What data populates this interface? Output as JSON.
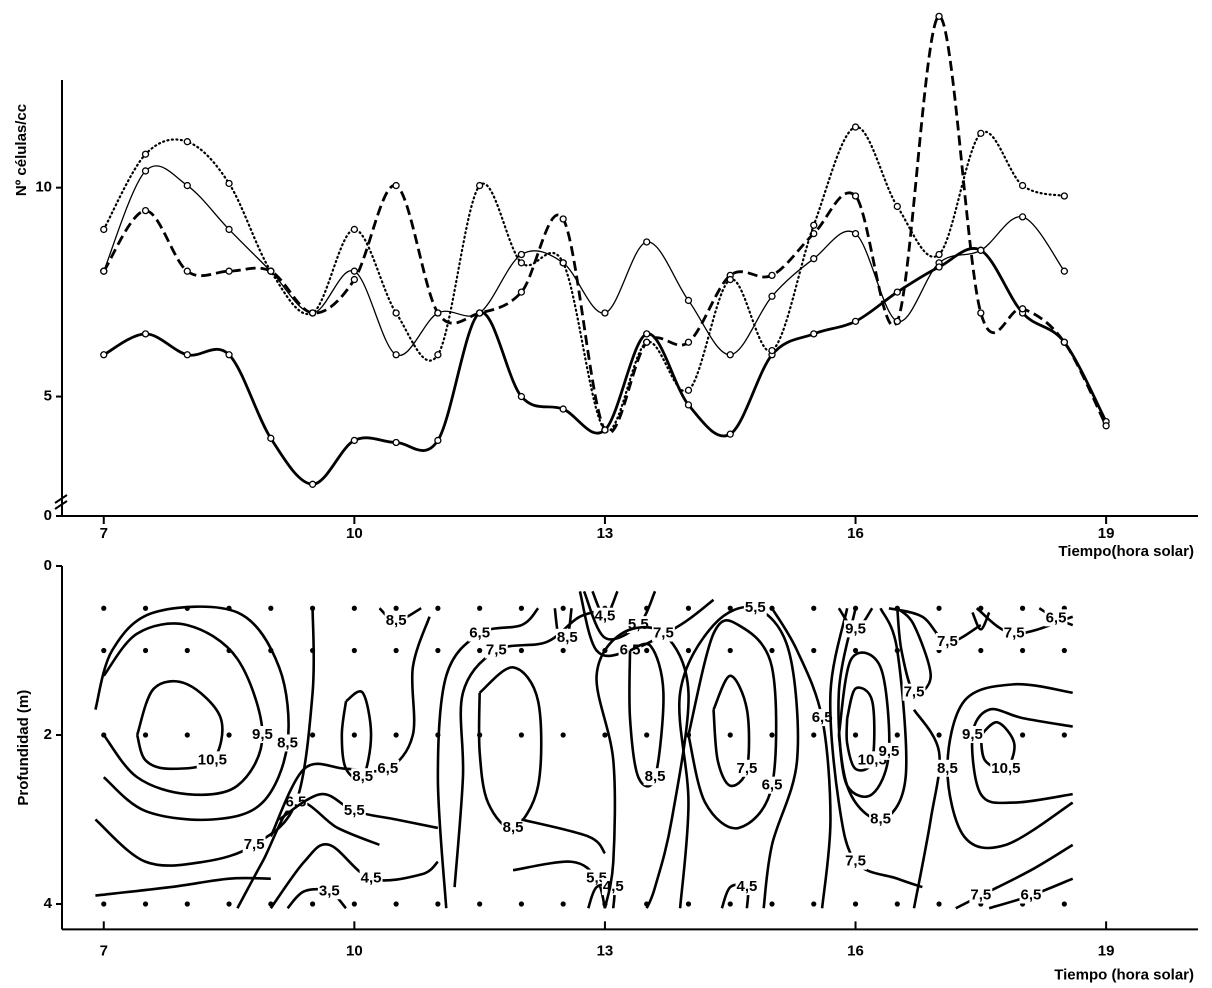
{
  "chart_data": [
    {
      "type": "line",
      "y_label": "Nº células/cc",
      "x_label": "Tiempo(hora solar)",
      "x": [
        7,
        7.5,
        8,
        8.5,
        9,
        9.5,
        10,
        10.5,
        11,
        11.5,
        12,
        12.5,
        13,
        13.5,
        14,
        14.5,
        15,
        15.5,
        16,
        16.5,
        17,
        17.5,
        18,
        18.5,
        19
      ],
      "xlim": [
        6.5,
        20.1
      ],
      "xticks": [
        7,
        10,
        13,
        16,
        19
      ],
      "ylim": [
        0,
        14.3
      ],
      "yticks": [
        0,
        5,
        10
      ],
      "broken_axis": true,
      "series": [
        {
          "color": "#000000",
          "style": "solid-thin",
          "values": [
            8.0,
            10.4,
            10.05,
            9.0,
            8.0,
            7.0,
            8.0,
            6.0,
            7.0,
            7.0,
            8.4,
            8.2,
            7.0,
            8.7,
            7.3,
            6.0,
            7.4,
            8.3,
            8.9,
            6.8,
            8.2,
            8.5,
            9.3,
            8.0,
            null
          ]
        },
        {
          "color": "#000000",
          "style": "solid-thick",
          "values": [
            6.0,
            6.5,
            6.0,
            6.0,
            4.0,
            2.9,
            3.95,
            3.9,
            3.95,
            7.0,
            5.0,
            4.7,
            4.2,
            6.5,
            4.8,
            4.1,
            6.0,
            6.5,
            6.8,
            7.5,
            8.1,
            8.5,
            7.0,
            6.3,
            4.4
          ]
        },
        {
          "color": "#000000",
          "style": "dashed",
          "values": [
            8.0,
            9.45,
            8.0,
            8.0,
            8.0,
            7.0,
            7.8,
            10.05,
            7.0,
            7.0,
            7.5,
            9.25,
            4.2,
            6.3,
            6.3,
            7.9,
            7.9,
            8.9,
            9.8,
            6.8,
            14.1,
            7.0,
            7.1,
            6.3,
            4.3
          ]
        },
        {
          "color": "#000000",
          "style": "dotted",
          "values": [
            9.0,
            10.8,
            11.1,
            10.1,
            8.0,
            7.0,
            9.0,
            7.0,
            6.0,
            10.05,
            8.2,
            8.2,
            4.2,
            6.3,
            5.15,
            7.8,
            6.1,
            9.1,
            11.45,
            9.55,
            8.4,
            11.3,
            10.05,
            9.8,
            null
          ]
        }
      ]
    },
    {
      "type": "contour",
      "y_label": "Profundidad (m)",
      "x_label": "Tiempo (hora solar)",
      "xlim": [
        6.5,
        20.1
      ],
      "xticks": [
        7,
        10,
        13,
        16,
        19
      ],
      "ylim": [
        0,
        4.3
      ],
      "yticks": [
        0,
        2,
        4
      ],
      "y_inverted": true,
      "sample_times": [
        7,
        7.5,
        8,
        8.5,
        9,
        9.5,
        10,
        10.5,
        11,
        11.5,
        12,
        12.5,
        13,
        13.5,
        14,
        14.5,
        15,
        15.5,
        16,
        16.5,
        17,
        17.5,
        18,
        18.5
      ],
      "sample_depths": [
        0.5,
        1,
        2,
        4
      ],
      "contours": [
        {
          "label": "10,5",
          "x": [
            7.4,
            7.6,
            8.0,
            8.4,
            8.3,
            7.8,
            7.5,
            7.4
          ],
          "depth": [
            2.0,
            1.45,
            1.4,
            1.8,
            2.3,
            2.4,
            2.3,
            2.0
          ]
        },
        {
          "label": "9,5",
          "x": [
            7.0,
            7.4,
            8.0,
            8.6,
            8.9,
            8.6,
            8.0,
            7.4,
            7.0
          ],
          "depth": [
            1.3,
            0.8,
            0.7,
            1.1,
            2.0,
            2.6,
            2.7,
            2.5,
            2.0
          ]
        },
        {
          "label": "8,5",
          "x": [
            6.9,
            7.1,
            7.6,
            8.6,
            9.1,
            9.2,
            8.9,
            8.3,
            7.5,
            7.0
          ],
          "depth": [
            1.7,
            1.0,
            0.55,
            0.55,
            1.2,
            2.1,
            2.8,
            3.0,
            2.9,
            2.5
          ]
        },
        {
          "label": "7,5",
          "x": [
            6.9,
            7.5,
            8.2,
            8.8,
            9.3,
            9.5,
            9.5
          ],
          "depth": [
            3.0,
            3.5,
            3.5,
            3.3,
            2.8,
            1.5,
            0.5
          ]
        },
        {
          "label": "6,5",
          "x": [
            8.6,
            8.9,
            9.3,
            9.8,
            10.3
          ],
          "depth": [
            4.05,
            3.5,
            2.8,
            3.1,
            3.3
          ]
        },
        {
          "x": [
            6.9,
            7.8,
            8.5,
            9.0
          ],
          "depth": [
            3.9,
            3.8,
            3.7,
            3.7
          ]
        },
        {
          "label": "3,5",
          "x": [
            9.2,
            9.4,
            9.7,
            9.9
          ],
          "depth": [
            4.05,
            3.85,
            3.85,
            4.05
          ]
        },
        {
          "label": "4,5",
          "x": [
            9.0,
            9.4,
            9.7,
            10.2,
            10.8,
            11.0
          ],
          "depth": [
            4.05,
            3.5,
            3.3,
            3.7,
            3.65,
            3.5
          ]
        },
        {
          "label": "5,5",
          "x": [
            9.1,
            9.6,
            10.0,
            10.5,
            11.0
          ],
          "depth": [
            3.0,
            2.7,
            2.9,
            3.0,
            3.1
          ]
        },
        {
          "label": "6,5",
          "x": [
            9.0,
            9.4,
            9.9,
            10.4,
            10.7,
            10.7,
            10.9
          ],
          "depth": [
            3.2,
            2.4,
            2.4,
            2.4,
            2.0,
            1.2,
            0.6
          ]
        },
        {
          "label": "8,5",
          "x": [
            9.9,
            10.1,
            10.2,
            10.1,
            9.9,
            9.85,
            9.9
          ],
          "depth": [
            1.6,
            1.5,
            2.0,
            2.5,
            2.4,
            2.0,
            1.6
          ]
        },
        {
          "label": "8,5",
          "x": [
            10.3,
            10.5,
            10.8
          ],
          "depth": [
            0.5,
            0.65,
            0.5
          ]
        },
        {
          "label": "8,5",
          "x": [
            11.5,
            11.9,
            12.2,
            12.2,
            11.9,
            11.6,
            11.5,
            11.5
          ],
          "depth": [
            1.5,
            1.2,
            1.6,
            2.6,
            3.1,
            2.8,
            2.2,
            1.5
          ]
        },
        {
          "label": "7,5",
          "x": [
            11.2,
            11.3,
            11.3,
            11.7,
            12.3,
            12.7,
            13.1
          ],
          "depth": [
            3.8,
            2.5,
            1.5,
            1.0,
            0.9,
            0.6,
            0.5
          ]
        },
        {
          "label": "6,5",
          "x": [
            11.1,
            11.0,
            11.1,
            11.5,
            12.0,
            12.2
          ],
          "depth": [
            4.05,
            2.5,
            1.3,
            0.8,
            0.7,
            0.5
          ]
        },
        {
          "x": [
            12.0,
            12.8,
            13.0
          ],
          "depth": [
            3.0,
            3.2,
            3.4
          ]
        },
        {
          "label": "5,5",
          "x": [
            11.9,
            12.6,
            12.9,
            13.0
          ],
          "depth": [
            3.6,
            3.5,
            3.7,
            4.05
          ]
        },
        {
          "label": "4,5",
          "x": [
            12.8,
            12.9,
            13.1,
            13.1
          ],
          "depth": [
            4.05,
            3.8,
            3.8,
            4.05
          ]
        },
        {
          "label": "8,5",
          "x": [
            12.4,
            12.45,
            12.55,
            12.6
          ],
          "depth": [
            0.5,
            0.85,
            0.85,
            0.5
          ]
        },
        {
          "label": "4,5",
          "x": [
            12.85,
            13.0,
            13.15
          ],
          "depth": [
            0.3,
            0.6,
            0.3
          ]
        },
        {
          "label": "5,5",
          "x": [
            12.75,
            13.0,
            13.4,
            13.6
          ],
          "depth": [
            0.3,
            0.85,
            0.7,
            0.3
          ]
        },
        {
          "label": "6,5",
          "x": [
            12.7,
            12.9,
            13.3,
            13.9,
            14.3
          ],
          "depth": [
            0.3,
            1.0,
            1.0,
            0.7,
            0.4
          ]
        },
        {
          "label": "8,5",
          "x": [
            13.3,
            13.55,
            13.7,
            13.6,
            13.4,
            13.3,
            13.3
          ],
          "depth": [
            1.0,
            0.95,
            1.5,
            2.5,
            2.5,
            1.8,
            1.0
          ]
        },
        {
          "label": "7,5",
          "x": [
            13.0,
            13.1,
            13.1,
            12.9,
            13.2,
            13.7,
            14.0,
            13.8,
            13.6,
            13.5
          ],
          "depth": [
            4.05,
            3.5,
            2.3,
            1.3,
            0.8,
            0.8,
            1.5,
            3.0,
            3.8,
            4.05
          ]
        },
        {
          "label": "7,5",
          "x": [
            14.3,
            14.5,
            14.7,
            14.7,
            14.5,
            14.35,
            14.3
          ],
          "depth": [
            1.7,
            1.3,
            1.7,
            2.4,
            2.6,
            2.3,
            1.7
          ]
        },
        {
          "label": "6,5",
          "x": [
            14.0,
            14.3,
            14.6,
            15.0,
            15.0,
            14.6,
            14.2,
            14.0
          ],
          "depth": [
            2.0,
            0.8,
            0.7,
            1.2,
            2.6,
            3.1,
            2.8,
            2.0
          ]
        },
        {
          "label": "5,5",
          "x": [
            13.9,
            14.0,
            13.9,
            14.3,
            14.8,
            15.2,
            15.3,
            15.0,
            14.9
          ],
          "depth": [
            4.05,
            2.8,
            1.5,
            0.7,
            0.5,
            1.0,
            2.3,
            3.3,
            4.05
          ]
        },
        {
          "label": "4,5",
          "x": [
            14.4,
            14.5,
            14.7,
            14.7
          ],
          "depth": [
            4.05,
            3.8,
            3.8,
            4.05
          ]
        },
        {
          "label": "6,5",
          "x": [
            15.6,
            15.7,
            15.6,
            15.3,
            15.0
          ],
          "depth": [
            4.05,
            3.0,
            1.8,
            1.0,
            0.5
          ]
        },
        {
          "label": "7,5",
          "x": [
            15.9,
            15.7,
            15.8,
            16.0,
            16.5,
            16.8
          ],
          "depth": [
            0.5,
            1.5,
            2.8,
            3.5,
            3.7,
            3.8
          ]
        },
        {
          "label": "10,5",
          "x": [
            15.9,
            16.0,
            16.2,
            16.2,
            16.0,
            15.9,
            15.9
          ],
          "depth": [
            1.8,
            1.45,
            1.6,
            2.3,
            2.4,
            2.1,
            1.8
          ]
        },
        {
          "label": "9,5",
          "x": [
            15.8,
            15.95,
            16.3,
            16.4,
            16.2,
            15.9,
            15.8
          ],
          "depth": [
            2.0,
            1.1,
            1.2,
            2.2,
            2.7,
            2.6,
            2.0
          ]
        },
        {
          "label": "8,5",
          "x": [
            16.0,
            15.8,
            15.9,
            16.3,
            16.6,
            16.5,
            16.3
          ],
          "depth": [
            0.5,
            1.5,
            2.6,
            3.0,
            2.5,
            1.0,
            0.5
          ]
        },
        {
          "label": "9,5",
          "x": [
            15.8,
            16.0,
            16.2
          ],
          "depth": [
            0.5,
            0.75,
            0.5
          ]
        },
        {
          "label": "7,5",
          "x": [
            16.5,
            16.7,
            16.9,
            16.7,
            16.55,
            16.5
          ],
          "depth": [
            0.5,
            0.7,
            1.3,
            1.5,
            1.0,
            0.5
          ]
        },
        {
          "label": "7,5",
          "x": [
            16.4,
            16.8,
            17.1,
            17.5
          ],
          "depth": [
            0.5,
            0.6,
            0.9,
            0.7
          ]
        },
        {
          "x": [
            16.7,
            16.9,
            17.0,
            16.7
          ],
          "depth": [
            4.05,
            3.0,
            2.2,
            1.7
          ]
        },
        {
          "label": "10,5",
          "x": [
            17.5,
            17.7,
            17.9,
            17.8,
            17.55,
            17.5
          ],
          "depth": [
            2.0,
            1.85,
            2.1,
            2.4,
            2.3,
            2.0
          ]
        },
        {
          "label": "9,5",
          "x": [
            18.6,
            18.0,
            17.6,
            17.4,
            17.5,
            17.9,
            18.6
          ],
          "depth": [
            1.9,
            1.8,
            1.7,
            2.0,
            2.7,
            2.8,
            2.7
          ]
        },
        {
          "label": "8,5",
          "x": [
            18.6,
            17.9,
            17.3,
            17.1,
            17.3,
            17.8,
            18.6
          ],
          "depth": [
            1.5,
            1.4,
            1.6,
            2.4,
            3.2,
            3.3,
            2.8
          ]
        },
        {
          "label": "7,5",
          "x": [
            18.6,
            18.1,
            17.5,
            17.2
          ],
          "depth": [
            3.3,
            3.6,
            3.9,
            4.05
          ]
        },
        {
          "label": "6,5",
          "x": [
            17.6,
            18.1,
            18.6
          ],
          "depth": [
            4.05,
            3.9,
            3.7
          ]
        },
        {
          "label": "7,5",
          "x": [
            17.45,
            17.9,
            18.6
          ],
          "depth": [
            0.5,
            0.8,
            0.6
          ]
        },
        {
          "label": "6,5",
          "x": [
            18.2,
            18.4,
            18.6
          ],
          "depth": [
            0.5,
            0.62,
            0.7
          ]
        },
        {
          "x": [
            17.4,
            17.5,
            17.6
          ],
          "depth": [
            0.55,
            0.75,
            0.55
          ]
        }
      ]
    }
  ]
}
